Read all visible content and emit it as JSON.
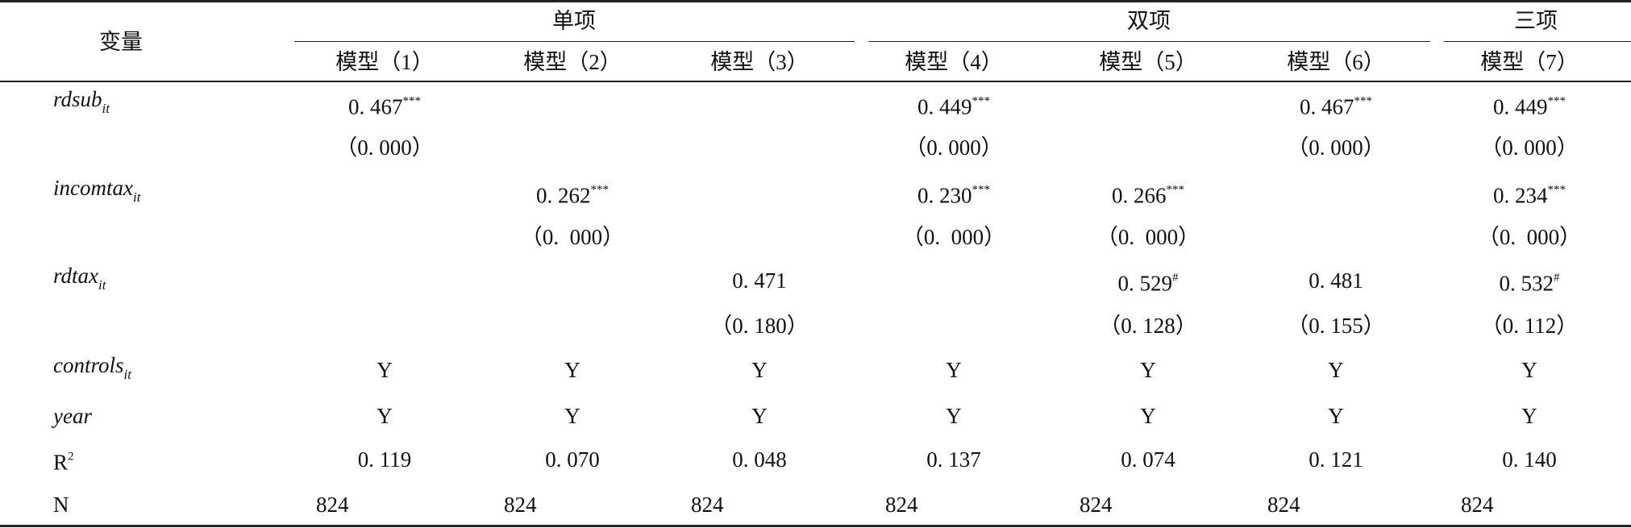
{
  "header": {
    "variable": "变量",
    "groups": [
      "单项",
      "双项",
      "三项"
    ],
    "models": [
      "模型（1）",
      "模型（2）",
      "模型（3）",
      "模型（4）",
      "模型（5）",
      "模型（6）",
      "模型（7）"
    ]
  },
  "table": {
    "rows": [
      {
        "label": "rdsub",
        "sub": "it",
        "cells": [
          {
            "text": "0. 467",
            "sup": "***"
          },
          null,
          null,
          {
            "text": "0. 449",
            "sup": "***"
          },
          null,
          {
            "text": "0. 467",
            "sup": "***"
          },
          {
            "text": "0. 449",
            "sup": "***"
          }
        ]
      },
      {
        "cells": [
          "（0. 000）",
          null,
          null,
          "（0. 000）",
          null,
          "（0. 000）",
          "（0. 000）"
        ]
      },
      {
        "label": "incomtax",
        "sub": "it",
        "cells": [
          null,
          {
            "text": "0. 262",
            "sup": "***"
          },
          null,
          {
            "text": "0. 230",
            "sup": "***"
          },
          {
            "text": "0. 266",
            "sup": "***"
          },
          null,
          {
            "text": "0. 234",
            "sup": "***"
          }
        ]
      },
      {
        "cells": [
          null,
          "（0.  000）",
          null,
          "（0.  000）",
          "（0.  000）",
          null,
          "（0.  000）"
        ]
      },
      {
        "label": "rdtax",
        "sub": "it",
        "cells": [
          null,
          null,
          "0. 471",
          null,
          {
            "text": "0. 529",
            "sup": "#"
          },
          "0. 481",
          {
            "text": "0. 532",
            "sup": "#"
          }
        ]
      },
      {
        "cells": [
          null,
          null,
          "（0. 180）",
          null,
          "（0. 128）",
          "（0. 155）",
          "（0. 112）"
        ]
      },
      {
        "label": "controls",
        "sub": "it",
        "cells": [
          "Y",
          "Y",
          "Y",
          "Y",
          "Y",
          "Y",
          "Y"
        ]
      },
      {
        "label": "year",
        "cells": [
          "Y",
          "Y",
          "Y",
          "Y",
          "Y",
          "Y",
          "Y"
        ]
      },
      {
        "label": "R",
        "sup": "2",
        "cells": [
          "0. 119",
          "0. 070",
          "0. 048",
          "0. 137",
          "0. 074",
          "0. 121",
          "0. 140"
        ]
      },
      {
        "label": "N",
        "cells": [
          824,
          824,
          824,
          824,
          824,
          824,
          824
        ]
      }
    ]
  }
}
